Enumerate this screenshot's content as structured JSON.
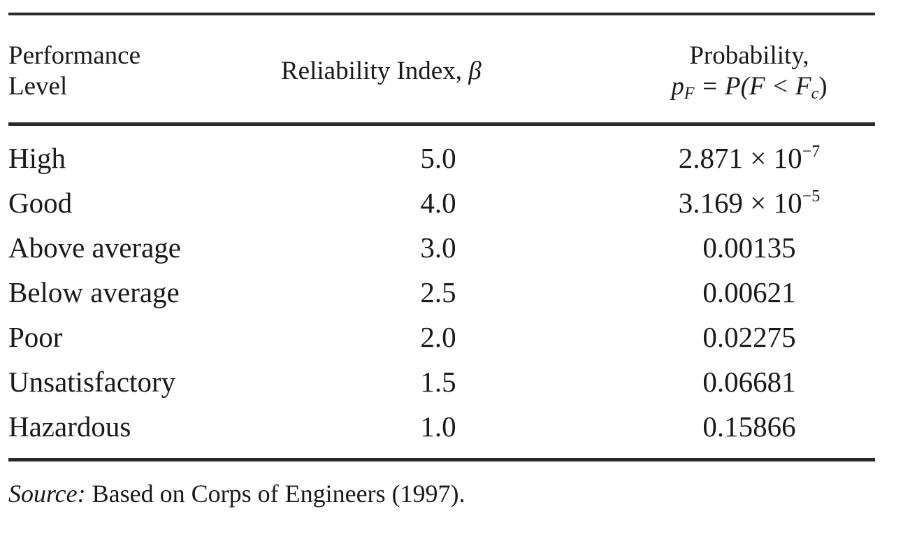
{
  "table": {
    "headers": {
      "performance_line1": "Performance",
      "performance_line2": "Level",
      "reliability_text": "Reliability Index, ",
      "reliability_symbol": "β",
      "probability_line1": "Probability,",
      "probability_p": "p",
      "probability_p_sub": "F",
      "probability_rest": " = P(F < F",
      "probability_fc_sub": "c",
      "probability_close": ")"
    },
    "rows": [
      {
        "level": "High",
        "beta": "5.0",
        "prob_mantissa": "2.871 × 10",
        "prob_exp": "−7",
        "prob": ""
      },
      {
        "level": "Good",
        "beta": "4.0",
        "prob_mantissa": "3.169 × 10",
        "prob_exp": "−5",
        "prob": ""
      },
      {
        "level": "Above average",
        "beta": "3.0",
        "prob_mantissa": "",
        "prob_exp": "",
        "prob": "0.00135"
      },
      {
        "level": "Below average",
        "beta": "2.5",
        "prob_mantissa": "",
        "prob_exp": "",
        "prob": "0.00621"
      },
      {
        "level": "Poor",
        "beta": "2.0",
        "prob_mantissa": "",
        "prob_exp": "",
        "prob": "0.02275"
      },
      {
        "level": "Unsatisfactory",
        "beta": "1.5",
        "prob_mantissa": "",
        "prob_exp": "",
        "prob": "0.06681"
      },
      {
        "level": "Hazardous",
        "beta": "1.0",
        "prob_mantissa": "",
        "prob_exp": "",
        "prob": "0.15866"
      }
    ]
  },
  "source": {
    "label": "Source:",
    "text": " Based on Corps of Engineers (1997)."
  }
}
